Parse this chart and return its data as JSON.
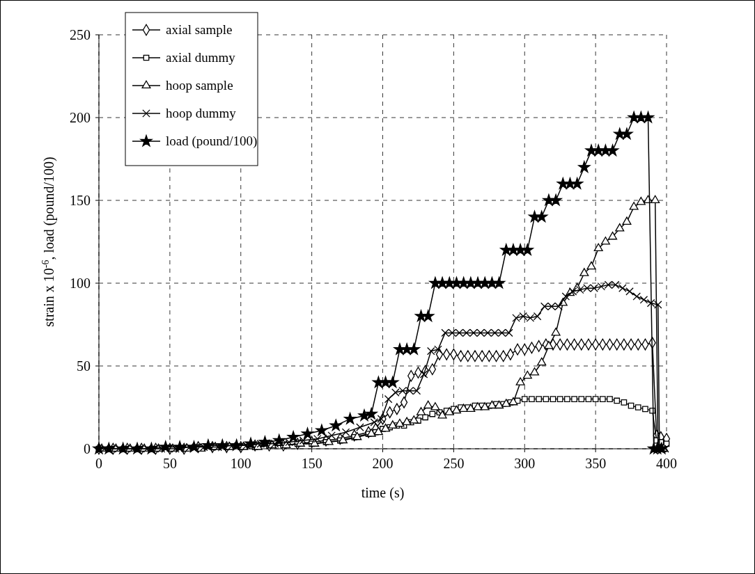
{
  "chart_data": {
    "type": "line",
    "xlabel": "time (s)",
    "ylabel": "strain x 10$^{-6}$, load (pound/100)",
    "xlim": [
      0,
      400
    ],
    "ylim": [
      0,
      250
    ],
    "xticks": [
      0,
      50,
      100,
      150,
      200,
      250,
      300,
      350,
      400
    ],
    "yticks": [
      0,
      50,
      100,
      150,
      200,
      250
    ],
    "grid": true,
    "legend": "top left",
    "line_style": "solid",
    "x": [
      0,
      10,
      20,
      30,
      40,
      50,
      60,
      70,
      80,
      90,
      100,
      110,
      120,
      130,
      140,
      150,
      160,
      170,
      180,
      190,
      195,
      200,
      205,
      210,
      215,
      220,
      225,
      230,
      235,
      240,
      245,
      250,
      255,
      260,
      265,
      270,
      275,
      280,
      285,
      290,
      295,
      300,
      305,
      310,
      315,
      320,
      325,
      330,
      335,
      340,
      345,
      350,
      355,
      360,
      365,
      370,
      375,
      380,
      385,
      390,
      393,
      396,
      400
    ],
    "series": [
      {
        "name": "axial sample",
        "color": "#000000",
        "marker": "diamond",
        "values": [
          0,
          0,
          0,
          0,
          0,
          0,
          0,
          1,
          1,
          1,
          1,
          2,
          2,
          2,
          3,
          4,
          5,
          6,
          8,
          10,
          12,
          18,
          22,
          24,
          28,
          44,
          46,
          47,
          48,
          57,
          57,
          57,
          56,
          56,
          56,
          56,
          56,
          56,
          56,
          57,
          60,
          60,
          61,
          62,
          63,
          63,
          63,
          63,
          63,
          63,
          63,
          63,
          63,
          63,
          63,
          63,
          63,
          63,
          63,
          64,
          8,
          7,
          6
        ]
      },
      {
        "name": "axial dummy",
        "color": "#000000",
        "marker": "square",
        "values": [
          0,
          0,
          0,
          0,
          0,
          0,
          0,
          1,
          1,
          1,
          1,
          1,
          2,
          2,
          3,
          3,
          4,
          5,
          7,
          9,
          10,
          12,
          13,
          14,
          14,
          16,
          17,
          19,
          21,
          22,
          23,
          24,
          25,
          25,
          26,
          26,
          26,
          27,
          27,
          28,
          29,
          30,
          30,
          30,
          30,
          30,
          30,
          30,
          30,
          30,
          30,
          30,
          30,
          30,
          29,
          28,
          26,
          25,
          24,
          23,
          5,
          4,
          3
        ]
      },
      {
        "name": "hoop sample",
        "color": "#000000",
        "marker": "triangle",
        "x": [
          2,
          12,
          22,
          32,
          42,
          52,
          62,
          72,
          82,
          92,
          102,
          112,
          122,
          132,
          142,
          152,
          162,
          172,
          182,
          192,
          197,
          202,
          207,
          212,
          217,
          222,
          227,
          232,
          237,
          242,
          247,
          252,
          257,
          262,
          267,
          272,
          277,
          282,
          287,
          292,
          297,
          302,
          307,
          312,
          317,
          322,
          327,
          332,
          337,
          342,
          347,
          352,
          357,
          362,
          367,
          372,
          377,
          382,
          387,
          392,
          394,
          396,
          398
        ],
        "values": [
          0,
          0,
          0,
          0,
          0,
          0,
          0,
          0,
          1,
          1,
          1,
          1,
          2,
          2,
          3,
          3,
          4,
          5,
          7,
          9,
          10,
          12,
          14,
          15,
          16,
          17,
          22,
          26,
          25,
          20,
          22,
          23,
          24,
          24,
          25,
          25,
          26,
          26,
          27,
          28,
          40,
          44,
          46,
          52,
          62,
          70,
          88,
          94,
          97,
          106,
          110,
          121,
          125,
          128,
          133,
          137,
          146,
          149,
          150,
          150,
          0,
          0,
          0
        ]
      },
      {
        "name": "hoop dummy",
        "color": "#000000",
        "marker": "cross",
        "x": [
          4,
          14,
          24,
          34,
          44,
          54,
          64,
          74,
          84,
          94,
          104,
          114,
          124,
          134,
          144,
          154,
          164,
          174,
          184,
          194,
          199,
          204,
          209,
          214,
          219,
          224,
          229,
          234,
          239,
          244,
          249,
          254,
          259,
          264,
          269,
          274,
          279,
          284,
          289,
          294,
          299,
          304,
          309,
          314,
          319,
          324,
          329,
          334,
          339,
          344,
          349,
          354,
          359,
          364,
          369,
          374,
          379,
          384,
          389,
          394,
          395,
          397,
          399
        ],
        "values": [
          0,
          0,
          0,
          0,
          0,
          0,
          1,
          1,
          1,
          2,
          2,
          3,
          3,
          4,
          5,
          6,
          8,
          10,
          13,
          16,
          18,
          30,
          34,
          35,
          35,
          35,
          45,
          59,
          60,
          70,
          70,
          70,
          70,
          70,
          70,
          70,
          70,
          70,
          70,
          79,
          80,
          79,
          80,
          86,
          86,
          86,
          92,
          95,
          96,
          97,
          97,
          98,
          99,
          99,
          97,
          95,
          92,
          90,
          88,
          87,
          0,
          0,
          0
        ]
      },
      {
        "name": "load (pound/100)",
        "color": "#000000",
        "marker": "star",
        "x": [
          0,
          7,
          17,
          27,
          37,
          47,
          57,
          67,
          77,
          87,
          97,
          107,
          117,
          127,
          137,
          147,
          157,
          167,
          177,
          187,
          192,
          197,
          202,
          207,
          212,
          217,
          222,
          227,
          232,
          237,
          242,
          247,
          252,
          257,
          262,
          267,
          272,
          277,
          282,
          287,
          292,
          297,
          302,
          307,
          312,
          317,
          322,
          327,
          332,
          337,
          342,
          347,
          352,
          357,
          362,
          367,
          372,
          377,
          382,
          387,
          391,
          393.5,
          396.5
        ],
        "values": [
          0,
          0,
          0,
          0,
          0,
          1,
          1,
          1,
          2,
          2,
          2,
          3,
          4,
          5,
          7,
          9,
          11,
          14,
          18,
          20,
          21,
          40,
          40,
          40,
          60,
          60,
          60,
          80,
          80,
          100,
          100,
          100,
          100,
          100,
          100,
          100,
          100,
          100,
          100,
          120,
          120,
          120,
          120,
          140,
          140,
          150,
          150,
          160,
          160,
          160,
          170,
          180,
          180,
          180,
          180,
          190,
          190,
          200,
          200,
          200,
          0,
          0,
          0
        ]
      }
    ]
  }
}
